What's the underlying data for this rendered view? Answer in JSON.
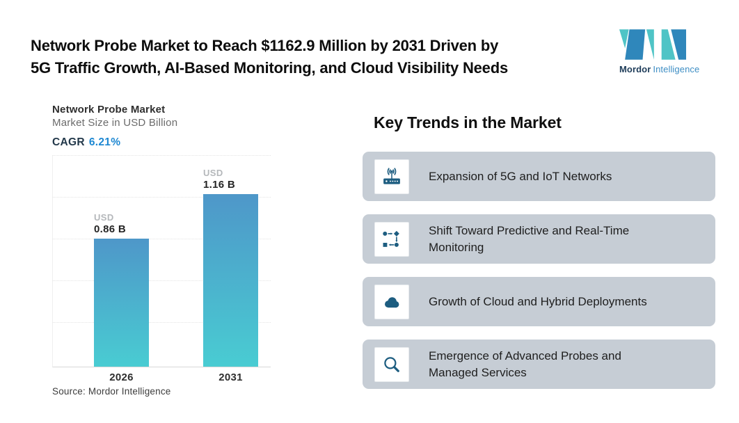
{
  "theme": {
    "accent_blue": "#1e88d2",
    "icon_color": "#1d5d80",
    "card_bg": "#c6cdd5",
    "logo_teal": "#4fc4c6",
    "logo_blue": "#2f87bb"
  },
  "header": {
    "title_line1": "Network Probe Market to Reach $1162.9 Million by 2031 Driven by",
    "title_line2": "5G Traffic Growth, AI-Based Monitoring, and Cloud Visibility Needs",
    "logo": {
      "brand_bold": "Mordor",
      "brand_light": "Intelligence"
    }
  },
  "chart": {
    "title": "Network Probe Market",
    "subtitle": "Market Size in USD Billion",
    "cagr_label": "CAGR",
    "cagr_value": "6.21%",
    "source": "Source: Mordor Intelligence"
  },
  "chart_data": {
    "type": "bar",
    "title": "Network Probe Market",
    "ylabel": "Market Size in USD Billion",
    "categories": [
      "2026",
      "2031"
    ],
    "values": [
      0.86,
      1.16
    ],
    "currency_label": "USD",
    "value_labels": [
      "0.86 B",
      "1.16 B"
    ],
    "cagr": "6.21%",
    "ylim": [
      0,
      1.42
    ],
    "grid": true,
    "legend": false,
    "bar_gradient": [
      "#4e97c9",
      "#49ccd2"
    ]
  },
  "trends": {
    "heading": "Key Trends in the Market",
    "items": [
      {
        "icon": "wireless-router-icon",
        "lines": [
          "Expansion of 5G and IoT Networks",
          ""
        ]
      },
      {
        "icon": "flowchart-icon",
        "lines": [
          "Shift Toward Predictive and Real-Time",
          "Monitoring"
        ]
      },
      {
        "icon": "cloud-icon",
        "lines": [
          "Growth of Cloud and Hybrid Deployments",
          ""
        ]
      },
      {
        "icon": "magnifier-icon",
        "lines": [
          "Emergence of Advanced Probes and",
          "Managed Services"
        ]
      }
    ]
  }
}
